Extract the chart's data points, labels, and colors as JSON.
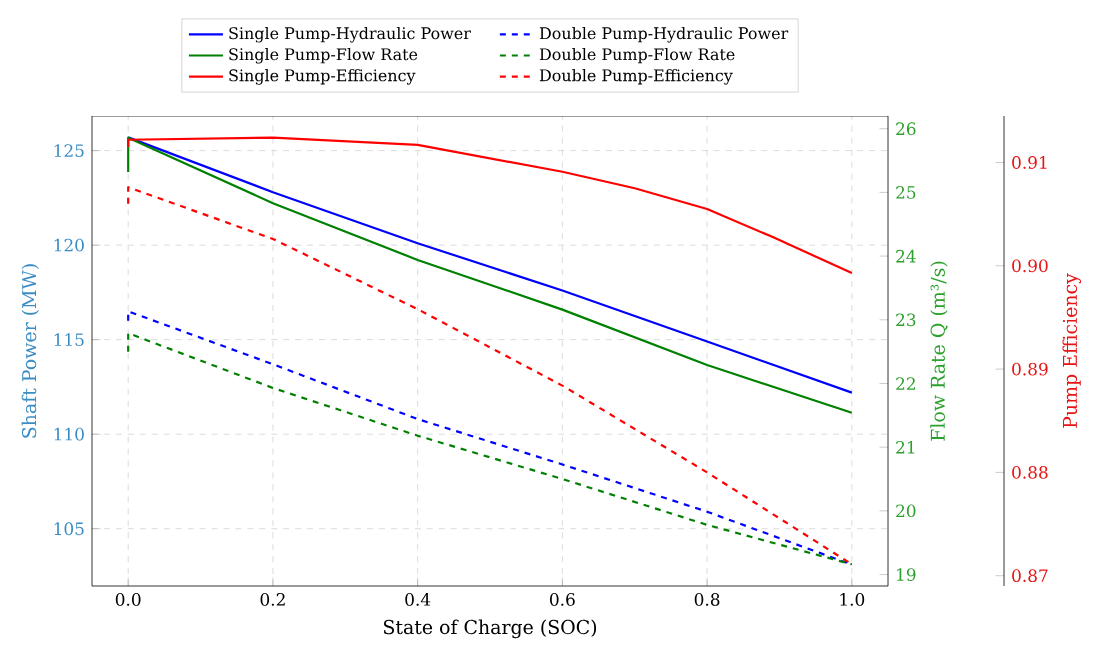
{
  "chart_data": {
    "type": "line",
    "xlabel": "State of Charge (SOC)",
    "ylabel": "Shaft Power (MW)",
    "y2label": "Flow Rate Q (m³/s)",
    "y3label": "Pump Efficiency",
    "xlim": [
      -0.05,
      1.05
    ],
    "xticks": [
      {
        "value": 0,
        "label": "0.0"
      },
      {
        "value": 0.2,
        "label": "0.2"
      },
      {
        "value": 0.4,
        "label": "0.4"
      },
      {
        "value": 0.6,
        "label": "0.6"
      },
      {
        "value": 0.8,
        "label": "0.8"
      },
      {
        "value": 1,
        "label": "1.0"
      }
    ],
    "ylim": [
      101.97,
      126.83
    ],
    "yticks": [
      105,
      110,
      115,
      120,
      125
    ],
    "y2lim": [
      18.82,
      26.2
    ],
    "y2ticks": [
      19,
      20,
      21,
      22,
      23,
      24,
      25,
      26
    ],
    "y3lim": [
      0.869,
      0.9145
    ],
    "y3ticks": [
      0.87,
      0.88,
      0.89,
      {
        "value": 0.9,
        "label": "0.90"
      },
      0.91
    ],
    "grid": true,
    "legend": "top",
    "marker": "none",
    "series": [
      {
        "name": "Single Pump-Hydraulic Power",
        "color": "#0000ff",
        "axis": "y",
        "line_style": "solid",
        "x": [
          0,
          0.2,
          0.4,
          0.6,
          0.8,
          1.0
        ],
        "values": [
          125.7,
          122.8,
          120.1,
          117.6,
          114.9,
          112.2
        ]
      },
      {
        "name": "Single Pump-Flow Rate",
        "color": "#008000",
        "axis": "y2",
        "line_style": "solid",
        "x": [
          0,
          0,
          0.2,
          0.4,
          0.6,
          0.8,
          1.0
        ],
        "values": [
          25.32,
          25.86,
          24.83,
          23.94,
          23.16,
          22.29,
          21.54
        ]
      },
      {
        "name": "Single Pump-Efficiency",
        "color": "#ff0000",
        "axis": "y3",
        "line_style": "solid",
        "x": [
          0,
          0,
          0.2,
          0.4,
          0.6,
          0.7,
          0.8,
          0.89,
          1.0
        ],
        "values": [
          0.9115,
          0.9122,
          0.9124,
          0.9117,
          0.9091,
          0.9075,
          0.9055,
          0.9028,
          0.8993
        ]
      },
      {
        "name": "Double Pump-Hydraulic Power",
        "color": "#0000ff",
        "axis": "y",
        "line_style": "dashed",
        "x": [
          0,
          0,
          0.2,
          0.4,
          0.6,
          0.8,
          1.0
        ],
        "values": [
          116.0,
          116.5,
          113.7,
          110.8,
          108.4,
          105.9,
          103.1
        ]
      },
      {
        "name": "Double Pump-Flow Rate",
        "color": "#008000",
        "axis": "y2",
        "line_style": "dashed",
        "x": [
          0,
          0,
          0.2,
          0.4,
          0.6,
          0.8,
          1.0
        ],
        "values": [
          22.5,
          22.79,
          21.93,
          21.18,
          20.5,
          19.78,
          19.16
        ]
      },
      {
        "name": "Double Pump-Efficiency",
        "color": "#ff0000",
        "axis": "y3",
        "line_style": "dashed",
        "x": [
          0,
          0,
          0.2,
          0.4,
          0.6,
          0.8,
          1.0
        ],
        "values": [
          0.906,
          0.9076,
          0.9026,
          0.8958,
          0.8884,
          0.88,
          0.8711
        ]
      }
    ]
  }
}
